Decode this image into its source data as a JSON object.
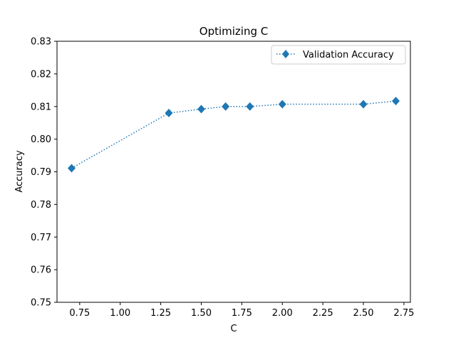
{
  "chart_data": {
    "type": "line",
    "title": "Optimizing C",
    "xlabel": "C",
    "ylabel": "Accuracy",
    "xlim": [
      0.61,
      2.79
    ],
    "ylim": [
      0.75,
      0.83
    ],
    "xticks": [
      0.75,
      1.0,
      1.25,
      1.5,
      1.75,
      2.0,
      2.25,
      2.5,
      2.75
    ],
    "xtick_labels": [
      "0.75",
      "1.00",
      "1.25",
      "1.50",
      "1.75",
      "2.00",
      "2.25",
      "2.50",
      "2.75"
    ],
    "yticks": [
      0.75,
      0.76,
      0.77,
      0.78,
      0.79,
      0.8,
      0.81,
      0.82,
      0.83
    ],
    "ytick_labels": [
      "0.75",
      "0.76",
      "0.77",
      "0.78",
      "0.79",
      "0.80",
      "0.81",
      "0.82",
      "0.83"
    ],
    "grid": false,
    "legend_position": "top-right",
    "series": [
      {
        "name": "Validation Accuracy",
        "color": "#1f77b4",
        "line_style": "dotted",
        "marker": "diamond",
        "x": [
          0.7,
          1.3,
          1.5,
          1.65,
          1.8,
          2.0,
          2.5,
          2.7
        ],
        "y": [
          0.7911,
          0.808,
          0.8092,
          0.81,
          0.81,
          0.8107,
          0.8107,
          0.8117
        ]
      }
    ]
  }
}
